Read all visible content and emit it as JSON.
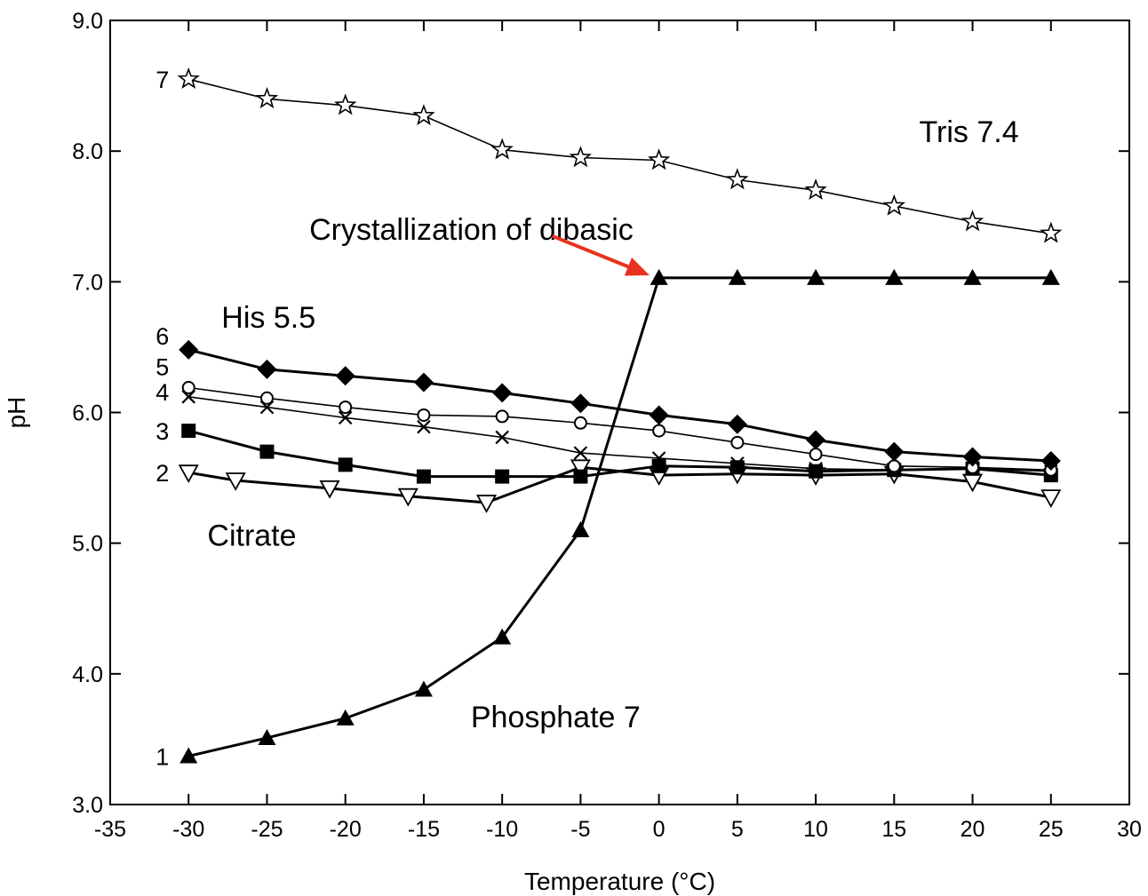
{
  "chart_data": {
    "type": "line",
    "title": "",
    "xlabel": "Temperature (°C)",
    "ylabel": "pH",
    "xlim": [
      -35,
      30
    ],
    "ylim": [
      3.0,
      9.0
    ],
    "x_ticks": [
      -35,
      -30,
      -25,
      -20,
      -15,
      -10,
      -5,
      0,
      5,
      10,
      15,
      20,
      25,
      30
    ],
    "y_ticks": [
      3.0,
      4.0,
      5.0,
      6.0,
      7.0,
      8.0,
      9.0
    ],
    "grid": false,
    "series": [
      {
        "label": "1",
        "marker": "filled-triangle",
        "stroke": "thick",
        "x": [
          -30,
          -25,
          -20,
          -15,
          -10,
          -5,
          0,
          5,
          10,
          15,
          20,
          25
        ],
        "y": [
          3.37,
          3.51,
          3.66,
          3.88,
          4.28,
          5.1,
          7.03,
          7.03,
          7.03,
          7.03,
          7.03,
          7.03
        ]
      },
      {
        "label": "2",
        "marker": "open-triangle-down",
        "stroke": "thick",
        "x": [
          -30,
          -27,
          -21,
          -16,
          -11,
          -5,
          0,
          5,
          10,
          15,
          20,
          25
        ],
        "y": [
          5.54,
          5.48,
          5.42,
          5.36,
          5.31,
          5.58,
          5.52,
          5.53,
          5.52,
          5.53,
          5.47,
          5.35
        ]
      },
      {
        "label": "3",
        "marker": "filled-square",
        "stroke": "thick",
        "x": [
          -30,
          -25,
          -20,
          -15,
          -10,
          -5,
          0,
          5,
          10,
          15,
          20,
          25
        ],
        "y": [
          5.86,
          5.7,
          5.6,
          5.51,
          5.51,
          5.51,
          5.59,
          5.58,
          5.55,
          5.56,
          5.57,
          5.52
        ]
      },
      {
        "label": "4",
        "marker": "cross",
        "stroke": "thin",
        "x": [
          -30,
          -25,
          -20,
          -15,
          -10,
          -5,
          0,
          5,
          10,
          15,
          20,
          25
        ],
        "y": [
          6.12,
          6.04,
          5.96,
          5.89,
          5.81,
          5.69,
          5.65,
          5.61,
          5.57,
          5.56,
          5.57,
          5.55
        ]
      },
      {
        "label": "5",
        "marker": "open-circle",
        "stroke": "thin",
        "x": [
          -30,
          -25,
          -20,
          -15,
          -10,
          -5,
          0,
          5,
          10,
          15,
          20,
          25
        ],
        "y": [
          6.19,
          6.11,
          6.04,
          5.98,
          5.97,
          5.92,
          5.86,
          5.77,
          5.68,
          5.59,
          5.58,
          5.56
        ]
      },
      {
        "label": "6",
        "marker": "filled-diamond",
        "stroke": "thick",
        "x": [
          -30,
          -25,
          -20,
          -15,
          -10,
          -5,
          0,
          5,
          10,
          15,
          20,
          25
        ],
        "y": [
          6.48,
          6.33,
          6.28,
          6.23,
          6.15,
          6.07,
          5.98,
          5.91,
          5.79,
          5.7,
          5.66,
          5.63
        ]
      },
      {
        "label": "7",
        "marker": "open-star",
        "stroke": "thin",
        "x": [
          -30,
          -25,
          -20,
          -15,
          -10,
          -5,
          0,
          5,
          10,
          15,
          20,
          25
        ],
        "y": [
          8.55,
          8.4,
          8.35,
          8.27,
          8.01,
          7.95,
          7.93,
          7.78,
          7.7,
          7.58,
          7.46,
          7.37
        ]
      }
    ],
    "annotations": [
      {
        "text": "Tris 7.4",
        "x": 16.6,
        "y": 8.07
      },
      {
        "text": "Crystallization of dibasic",
        "x": -22.3,
        "y": 7.32
      },
      {
        "text": "His 5.5",
        "x": -27.9,
        "y": 6.65
      },
      {
        "text": "Citrate",
        "x": -28.8,
        "y": 4.98
      },
      {
        "text": "Phosphate 7",
        "x": -12.0,
        "y": 3.59
      }
    ],
    "arrow": {
      "color": "#e8321e",
      "from": [
        -6.8,
        7.35
      ],
      "to": [
        -0.6,
        7.05
      ]
    }
  }
}
